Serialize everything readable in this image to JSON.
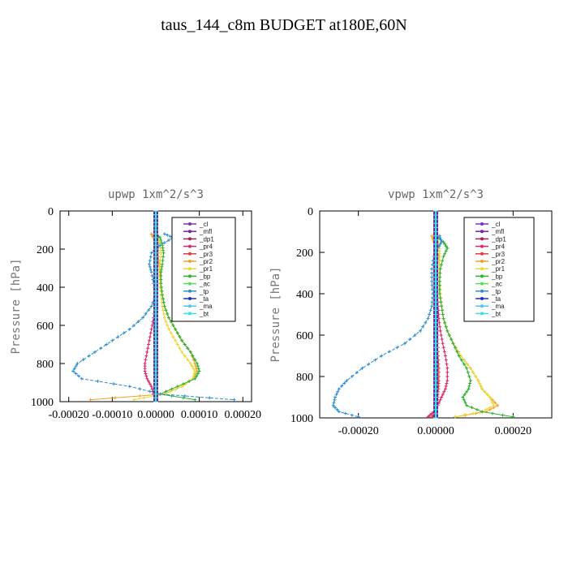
{
  "title": "taus_144_c8m  BUDGET at180E,60N",
  "colors": {
    "_cl": "#7a2fc4",
    "_mfl": "#7b1f9a",
    "_dp1": "#a0205a",
    "_pr4": "#d8286a",
    "_pr3": "#e83a3a",
    "_pr2": "#f0a028",
    "_pr1": "#e8d838",
    "_bp": "#30b030",
    "_ac": "#58e058",
    "_tp": "#3090c8",
    "_ta": "#2030d0",
    "_ma": "#50c8e8",
    "_bt": "#38e0e0"
  },
  "chart_data": [
    {
      "type": "line",
      "title": "upwp  1xm^2/s^3",
      "ylabel": "Pressure [hPa]",
      "xlim": [
        -0.00022,
        0.00022
      ],
      "ylim": [
        1000,
        0
      ],
      "xticks": [
        -0.0002,
        -0.0001,
        0.0,
        0.0001,
        0.0002
      ],
      "xtick_labels": [
        "-0.00020",
        "-0.00010",
        "0.00000",
        "0.00010",
        "0.00020"
      ],
      "yticks": [
        0,
        200,
        400,
        600,
        800,
        1000
      ],
      "legend": [
        "_cl",
        "_mfl",
        "_dp1",
        "_pr4",
        "_pr3",
        "_pr2",
        "_pr1",
        "_bp",
        "_ac",
        "_tp",
        "_ta",
        "_ma",
        "_bt"
      ],
      "legend_position": "top-right",
      "y": [
        120,
        140,
        180,
        220,
        280,
        320,
        380,
        440,
        500,
        560,
        620,
        680,
        740,
        800,
        840,
        880,
        920,
        960,
        990
      ],
      "series": [
        {
          "name": "_cl",
          "values": [
            0,
            0,
            0,
            0,
            0,
            0,
            0,
            0,
            0,
            0,
            0,
            0,
            0,
            0,
            0,
            0,
            0,
            0,
            0
          ]
        },
        {
          "name": "_mfl",
          "values": [
            0,
            0,
            0,
            0,
            0,
            0,
            0,
            0,
            0,
            0,
            0,
            0,
            0,
            0,
            0,
            0,
            0,
            0,
            0
          ]
        },
        {
          "name": "_dp1",
          "values": [
            0,
            0,
            0,
            0,
            0,
            0,
            0,
            0,
            0,
            0,
            0,
            0,
            0,
            0,
            0,
            0,
            0,
            0,
            0
          ]
        },
        {
          "name": "_pr4",
          "values": [
            0,
            5e-06,
            5e-06,
            5e-06,
            5e-06,
            4e-06,
            3e-06,
            2e-06,
            0,
            -5e-06,
            -1e-05,
            -1.5e-05,
            -2e-05,
            -2.5e-05,
            -2.5e-05,
            -2e-05,
            -1e-05,
            -5e-06,
            0
          ]
        },
        {
          "name": "_pr3",
          "values": [
            0,
            3e-06,
            3e-06,
            2e-06,
            2e-06,
            2e-06,
            1e-06,
            1e-06,
            0,
            0,
            0,
            1e-06,
            2e-06,
            2e-06,
            2e-06,
            1e-06,
            1e-06,
            0,
            0
          ]
        },
        {
          "name": "_pr2",
          "values": [
            -1e-05,
            -5e-06,
            0,
            5e-06,
            8e-06,
            1e-05,
            1.2e-05,
            1.5e-05,
            2e-05,
            3e-05,
            4.5e-05,
            6e-05,
            8e-05,
            9e-05,
            9.5e-05,
            8.5e-05,
            6e-05,
            2e-05,
            -0.00015
          ]
        },
        {
          "name": "_pr1",
          "values": [
            0,
            5e-06,
            1e-05,
            1.2e-05,
            1e-05,
            8e-06,
            1e-05,
            1.2e-05,
            1.5e-05,
            2e-05,
            3e-05,
            4.5e-05,
            6e-05,
            8e-05,
            9e-05,
            8.5e-05,
            6e-05,
            2e-05,
            -5e-05
          ]
        },
        {
          "name": "_bp",
          "values": [
            0,
            1e-05,
            1.5e-05,
            1.8e-05,
            1.5e-05,
            1.2e-05,
            1.2e-05,
            1.5e-05,
            2e-05,
            3e-05,
            4.5e-05,
            6e-05,
            8e-05,
            9.5e-05,
            0.0001,
            9e-05,
            5e-05,
            1e-05,
            9e-05
          ]
        },
        {
          "name": "_ac",
          "values": [
            0,
            0,
            0,
            0,
            0,
            0,
            0,
            0,
            0,
            0,
            0,
            0,
            0,
            0,
            0,
            0,
            0,
            0,
            0
          ]
        },
        {
          "name": "_tp",
          "values": [
            2e-05,
            4e-05,
            1e-05,
            -1e-05,
            -1.5e-05,
            -1e-05,
            -5e-06,
            0,
            -1e-05,
            -3e-05,
            -6e-05,
            -0.0001,
            -0.00014,
            -0.00018,
            -0.00019,
            -0.00017,
            -6e-05,
            1e-05,
            0.00018
          ]
        },
        {
          "name": "_ta",
          "values": [
            0,
            0,
            0,
            0,
            0,
            0,
            0,
            0,
            0,
            0,
            0,
            0,
            0,
            0,
            0,
            0,
            0,
            0,
            0
          ]
        },
        {
          "name": "_ma",
          "values": [
            0,
            0,
            0,
            0,
            0,
            0,
            0,
            0,
            0,
            0,
            0,
            0,
            0,
            0,
            0,
            0,
            0,
            0,
            0
          ]
        },
        {
          "name": "_bt",
          "values": [
            0,
            0,
            0,
            0,
            0,
            0,
            0,
            0,
            0,
            0,
            0,
            0,
            0,
            0,
            0,
            0,
            0,
            0,
            0
          ]
        }
      ]
    },
    {
      "type": "line",
      "title": "vpwp  1xm^2/s^3",
      "ylabel": "Pressure [hPa]",
      "xlim": [
        -0.0003,
        0.0003
      ],
      "ylim": [
        1000,
        0
      ],
      "xticks": [
        -0.0002,
        0.0,
        0.0002
      ],
      "xtick_labels": [
        "-0.00020",
        "0.00000",
        "0.00020"
      ],
      "yticks": [
        0,
        200,
        400,
        600,
        800,
        1000
      ],
      "legend": [
        "_cl",
        "_mfl",
        "_dp1",
        "_pr4",
        "_pr3",
        "_pr2",
        "_pr1",
        "_bp",
        "_ac",
        "_tp",
        "_ta",
        "_ma",
        "_bt"
      ],
      "legend_position": "top-right",
      "y": [
        120,
        150,
        180,
        220,
        280,
        340,
        400,
        460,
        520,
        580,
        640,
        700,
        760,
        820,
        860,
        900,
        940,
        970,
        995
      ],
      "series": [
        {
          "name": "_cl",
          "values": [
            0,
            0,
            0,
            0,
            0,
            0,
            0,
            0,
            0,
            0,
            0,
            0,
            0,
            0,
            0,
            0,
            0,
            0,
            0
          ]
        },
        {
          "name": "_mfl",
          "values": [
            0,
            0,
            0,
            0,
            0,
            0,
            0,
            0,
            0,
            0,
            0,
            0,
            0,
            0,
            0,
            0,
            0,
            0,
            0
          ]
        },
        {
          "name": "_dp1",
          "values": [
            0,
            0,
            0,
            0,
            0,
            0,
            0,
            0,
            0,
            0,
            0,
            0,
            0,
            0,
            0,
            0,
            0,
            0,
            0
          ]
        },
        {
          "name": "_pr4",
          "values": [
            0,
            5e-06,
            5e-06,
            5e-06,
            5e-06,
            5e-06,
            5e-06,
            6e-06,
            8e-06,
            1.2e-05,
            1.8e-05,
            2.5e-05,
            3e-05,
            3e-05,
            2.5e-05,
            1.5e-05,
            5e-06,
            -5e-06,
            -2e-05
          ]
        },
        {
          "name": "_pr3",
          "values": [
            0,
            2e-06,
            2e-06,
            2e-06,
            2e-06,
            2e-06,
            2e-06,
            2e-06,
            3e-06,
            4e-06,
            5e-06,
            6e-06,
            8e-06,
            8e-06,
            7e-06,
            5e-06,
            3e-06,
            1e-06,
            -1e-05
          ]
        },
        {
          "name": "_pr2",
          "values": [
            -1e-05,
            -5e-06,
            0,
            8e-06,
            1e-05,
            1e-05,
            1.2e-05,
            1.5e-05,
            2e-05,
            3e-05,
            4.5e-05,
            6.5e-05,
            9e-05,
            0.00011,
            0.00012,
            0.00014,
            0.00016,
            0.00013,
            5e-05
          ]
        },
        {
          "name": "_pr1",
          "values": [
            0,
            5e-06,
            1e-05,
            1e-05,
            1e-05,
            1e-05,
            1.2e-05,
            1.5e-05,
            2e-05,
            3e-05,
            4.5e-05,
            6.5e-05,
            9e-05,
            0.00011,
            0.00012,
            0.00014,
            0.00015,
            0.00012,
            5e-05
          ]
        },
        {
          "name": "_bp",
          "values": [
            0,
            2e-05,
            3e-05,
            2e-05,
            1.2e-05,
            1e-05,
            1e-05,
            1.5e-05,
            2e-05,
            3e-05,
            4.5e-05,
            6e-05,
            8e-05,
            9e-05,
            8.5e-05,
            7e-05,
            8e-05,
            0.00012,
            0.0002
          ]
        },
        {
          "name": "_ac",
          "values": [
            0,
            0,
            0,
            0,
            0,
            0,
            0,
            0,
            0,
            0,
            0,
            0,
            0,
            0,
            0,
            0,
            0,
            0,
            0
          ]
        },
        {
          "name": "_tp",
          "values": [
            1e-05,
            1.5e-05,
            5e-06,
            -5e-06,
            -1e-05,
            -1e-05,
            -8e-06,
            -1e-05,
            -2e-05,
            -4e-05,
            -8e-05,
            -0.00014,
            -0.00019,
            -0.00023,
            -0.00025,
            -0.00026,
            -0.000265,
            -0.00025,
            -0.0002
          ]
        },
        {
          "name": "_ta",
          "values": [
            0,
            0,
            0,
            0,
            0,
            0,
            0,
            0,
            0,
            0,
            0,
            0,
            0,
            0,
            0,
            0,
            0,
            0,
            0
          ]
        },
        {
          "name": "_ma",
          "values": [
            0,
            0,
            0,
            0,
            0,
            0,
            0,
            0,
            0,
            0,
            0,
            0,
            0,
            0,
            0,
            0,
            0,
            0,
            0
          ]
        },
        {
          "name": "_bt",
          "values": [
            0,
            0,
            0,
            0,
            0,
            0,
            0,
            0,
            0,
            0,
            0,
            0,
            0,
            0,
            0,
            0,
            0,
            0,
            0
          ]
        }
      ]
    }
  ]
}
